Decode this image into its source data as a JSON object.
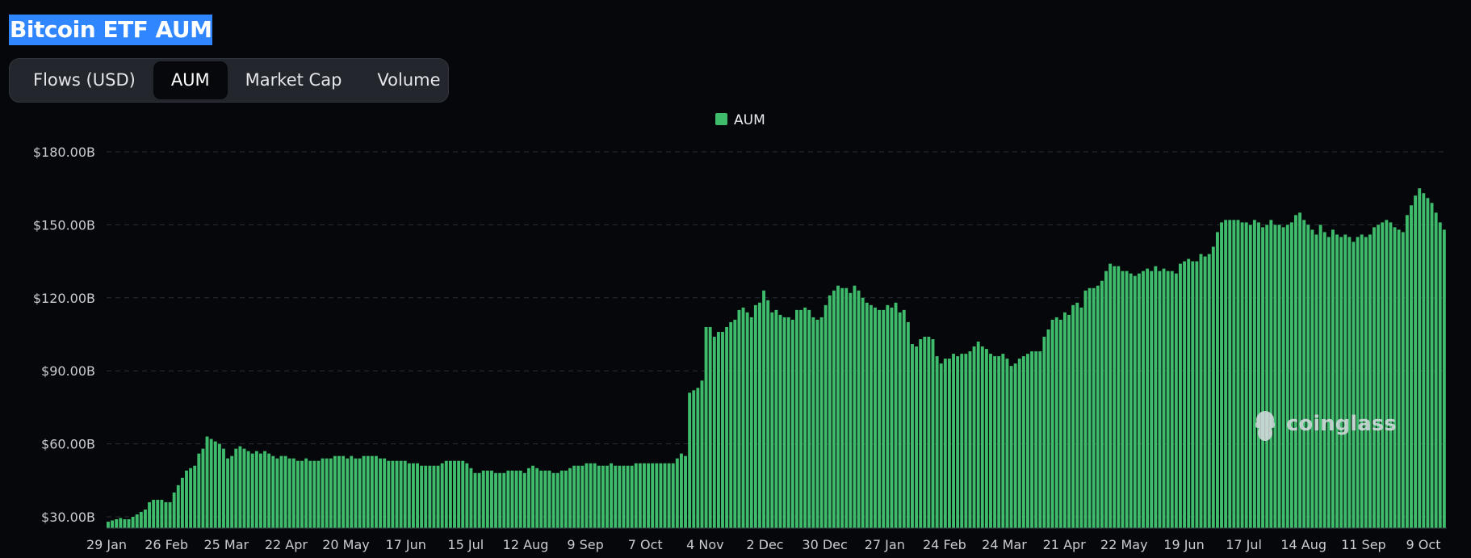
{
  "page": {
    "title": "Bitcoin ETF AUM"
  },
  "tabs": [
    {
      "label": "Flows (USD)",
      "active": false
    },
    {
      "label": "AUM",
      "active": true
    },
    {
      "label": "Market Cap",
      "active": false
    },
    {
      "label": "Volume",
      "active": false
    }
  ],
  "watermark": {
    "text": "coinglass",
    "icon": "coinglass-logo-icon"
  },
  "colors": {
    "bar": "#3fbb6c",
    "legend_swatch": "#3fbb6c",
    "title_highlight": "#2f86ff",
    "background": "#05070b"
  },
  "chart_data": {
    "type": "bar",
    "title": "",
    "legend": [
      "AUM"
    ],
    "legend_position": "top-center",
    "ylabel": "",
    "xlabel": "",
    "ylim": [
      25,
      185
    ],
    "y_ticks": [
      30,
      60,
      90,
      120,
      150,
      180
    ],
    "y_tick_labels": [
      "$30.00B",
      "$60.00B",
      "$90.00B",
      "$120.00B",
      "$150.00B",
      "$180.00B"
    ],
    "grid": true,
    "x_tick_labels": [
      "29 Jan",
      "26 Feb",
      "25 Mar",
      "22 Apr",
      "20 May",
      "17 Jun",
      "15 Jul",
      "12 Aug",
      "9 Sep",
      "7 Oct",
      "4 Nov",
      "2 Dec",
      "30 Dec",
      "27 Jan",
      "24 Feb",
      "24 Mar",
      "21 Apr",
      "22 May",
      "19 Jun",
      "17 Jul",
      "14 Aug",
      "11 Sep",
      "9 Oct"
    ],
    "series": [
      {
        "name": "AUM",
        "unit": "USD billions",
        "x_labels": [
          "29 Jan",
          "26 Feb",
          "25 Mar",
          "22 Apr",
          "20 May",
          "17 Jun",
          "15 Jul",
          "12 Aug",
          "9 Sep",
          "7 Oct",
          "4 Nov",
          "2 Dec",
          "30 Dec",
          "27 Jan",
          "24 Feb",
          "24 Mar",
          "21 Apr",
          "22 May",
          "19 Jun",
          "17 Jul",
          "14 Aug",
          "11 Sep",
          "9 Oct"
        ],
        "values": [
          28,
          28.5,
          29,
          29.5,
          29,
          29,
          30,
          31,
          32,
          33,
          36,
          37,
          37,
          37,
          36,
          36,
          40,
          43,
          46,
          49,
          50,
          51,
          56,
          58,
          63,
          62,
          61,
          60,
          58,
          54,
          55,
          58,
          59,
          58,
          57,
          56,
          57,
          56,
          57,
          56,
          55,
          54,
          55,
          55,
          54,
          54,
          53,
          53,
          54,
          53,
          53,
          53,
          54,
          54,
          54,
          55,
          55,
          55,
          54,
          55,
          54,
          54,
          55,
          55,
          55,
          55,
          54,
          54,
          53,
          53,
          53,
          53,
          53,
          52,
          52,
          52,
          51,
          51,
          51,
          51,
          51,
          52,
          53,
          53,
          53,
          53,
          53,
          52,
          50,
          48,
          48,
          49,
          49,
          49,
          48,
          48,
          48,
          49,
          49,
          49,
          49,
          48,
          50,
          51,
          50,
          49,
          49,
          49,
          48,
          48,
          49,
          49,
          50,
          51,
          51,
          51,
          52,
          52,
          52,
          51,
          51,
          51,
          52,
          51,
          51,
          51,
          51,
          51,
          52,
          52,
          52,
          52,
          52,
          52,
          52,
          52,
          52,
          52,
          54,
          56,
          55,
          81,
          82,
          83,
          86,
          108,
          108,
          104,
          106,
          106,
          108,
          110,
          111,
          115,
          116,
          114,
          112,
          117,
          118,
          123,
          119,
          114,
          115,
          113,
          112,
          112,
          111,
          115,
          115,
          116,
          115,
          112,
          111,
          112,
          117,
          121,
          123,
          125,
          124,
          124,
          122,
          125,
          123,
          120,
          118,
          117,
          116,
          115,
          115,
          117,
          116,
          118,
          114,
          115,
          110,
          101,
          100,
          103,
          104,
          104,
          103,
          96,
          93,
          95,
          95,
          97,
          96,
          97,
          97,
          98,
          100,
          102,
          100,
          99,
          97,
          96,
          96,
          97,
          95,
          92,
          93,
          95,
          96,
          97,
          98,
          98,
          98,
          104,
          107,
          111,
          112,
          111,
          114,
          113,
          117,
          118,
          116,
          123,
          124,
          124,
          125,
          127,
          131,
          134,
          133,
          133,
          131,
          131,
          130,
          129,
          130,
          131,
          132,
          131,
          133,
          131,
          132,
          131,
          131,
          130,
          134,
          135,
          136,
          135,
          135,
          138,
          137,
          138,
          141,
          147,
          151,
          152,
          152,
          152,
          152,
          151,
          151,
          150,
          152,
          151,
          149,
          150,
          152,
          150,
          150,
          149,
          150,
          151,
          154,
          155,
          152,
          150,
          148,
          146,
          150,
          147,
          145,
          148,
          146,
          145,
          146,
          145,
          143,
          145,
          146,
          145,
          146,
          149,
          150,
          151,
          152,
          151,
          149,
          148,
          147,
          154,
          158,
          162,
          165,
          163,
          161,
          159,
          155,
          151,
          148
        ]
      }
    ]
  }
}
